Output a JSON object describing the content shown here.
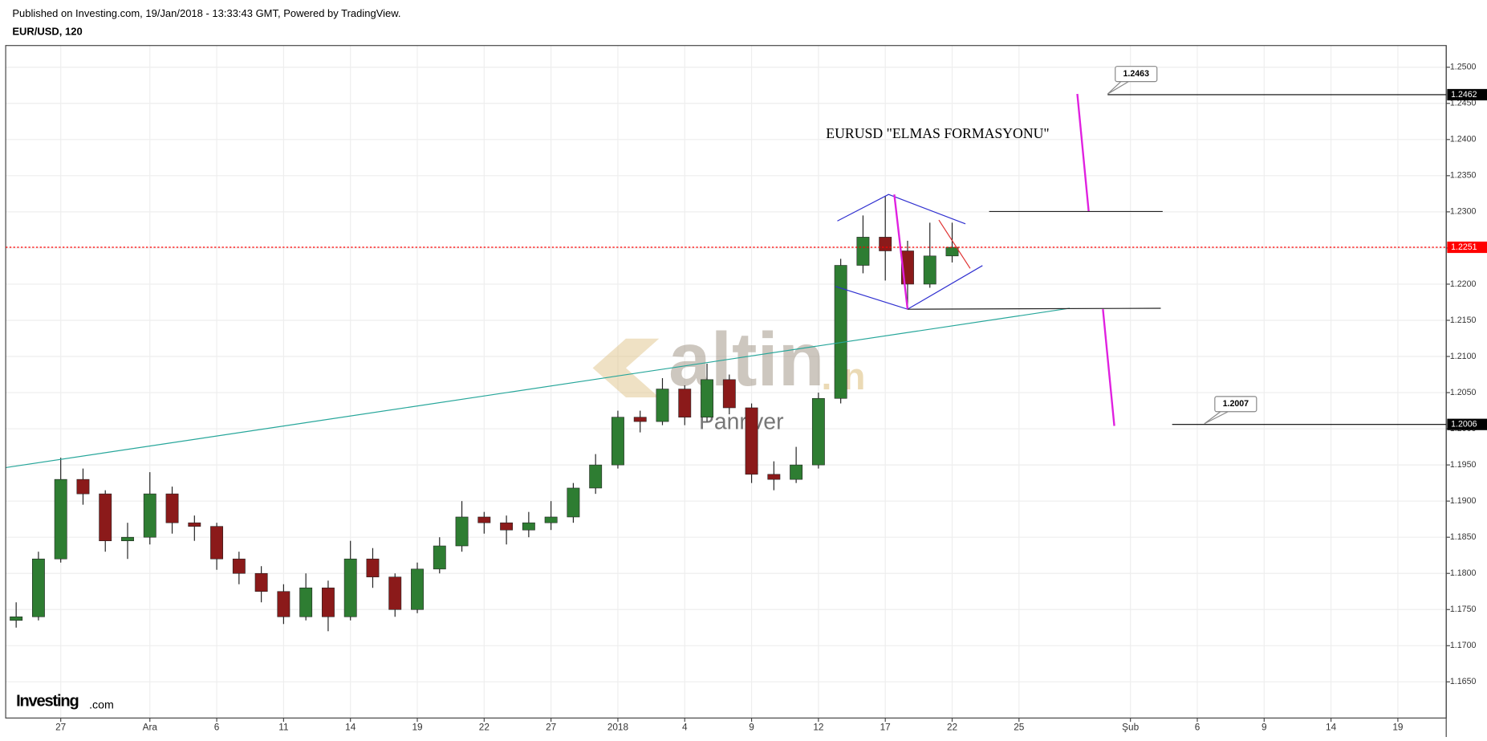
{
  "header": {
    "published": "Published on Investing.com, 19/Jan/2018 - 13:33:43 GMT, Powered by TradingView.",
    "symbol": "EUR/USD, 120"
  },
  "chart_data": {
    "type": "candlestick",
    "annotation": "EURUSD \"ELMAS FORMASYONU\"",
    "callouts": [
      1.2463,
      1.2007
    ],
    "watermark": {
      "brand": "altin",
      "suffix": ".in",
      "author": "Panriver"
    },
    "logo": {
      "name": "Investing",
      "suffix": ".com"
    },
    "up_color": "#2e7d32",
    "down_color": "#8b1a1a",
    "grid": true,
    "xlim": [
      -2.47,
      62.17
    ],
    "xticks": [
      {
        "value": 0,
        "label": "27"
      },
      {
        "value": 4,
        "label": "Ara"
      },
      {
        "value": 7,
        "label": "6"
      },
      {
        "value": 10,
        "label": "11"
      },
      {
        "value": 13,
        "label": "14"
      },
      {
        "value": 16,
        "label": "19"
      },
      {
        "value": 19,
        "label": "22"
      },
      {
        "value": 22,
        "label": "27"
      },
      {
        "value": 25,
        "label": "2018"
      },
      {
        "value": 28,
        "label": "4"
      },
      {
        "value": 31,
        "label": "9"
      },
      {
        "value": 34,
        "label": "12"
      },
      {
        "value": 37,
        "label": "17"
      },
      {
        "value": 40,
        "label": "22"
      },
      {
        "value": 43,
        "label": "25"
      },
      {
        "value": 48,
        "label": "Şub"
      },
      {
        "value": 51,
        "label": "6"
      },
      {
        "value": 54,
        "label": "9"
      },
      {
        "value": 57,
        "label": "14"
      },
      {
        "value": 60,
        "label": "19"
      }
    ],
    "ylim": [
      1.16,
      1.253
    ],
    "yticks": [
      {
        "value": 1.165,
        "label": "1.1650"
      },
      {
        "value": 1.17,
        "label": "1.1700"
      },
      {
        "value": 1.175,
        "label": "1.1750"
      },
      {
        "value": 1.18,
        "label": "1.1800"
      },
      {
        "value": 1.185,
        "label": "1.1850"
      },
      {
        "value": 1.19,
        "label": "1.1900"
      },
      {
        "value": 1.195,
        "label": "1.1950"
      },
      {
        "value": 1.2,
        "label": "1.2000"
      },
      {
        "value": 1.205,
        "label": "1.2050"
      },
      {
        "value": 1.21,
        "label": "1.2100"
      },
      {
        "value": 1.215,
        "label": "1.2150"
      },
      {
        "value": 1.22,
        "label": "1.2200"
      },
      {
        "value": 1.225,
        "label": "1.2250"
      },
      {
        "value": 1.23,
        "label": "1.2300"
      },
      {
        "value": 1.235,
        "label": "1.2350"
      },
      {
        "value": 1.24,
        "label": "1.2400"
      },
      {
        "value": 1.245,
        "label": "1.2450"
      },
      {
        "value": 1.25,
        "label": "1.2500"
      }
    ],
    "price_markers": [
      {
        "value": 1.2462,
        "color": "#000000"
      },
      {
        "value": 1.2251,
        "color": "#ff0000"
      },
      {
        "value": 1.2006,
        "color": "#000000"
      }
    ],
    "ohlc": {
      "x": [
        -2,
        -1,
        0,
        1,
        2,
        3,
        4,
        5,
        6,
        7,
        8,
        9,
        10,
        11,
        12,
        13,
        14,
        15,
        16,
        17,
        18,
        19,
        20,
        21,
        22,
        23,
        24,
        25,
        26,
        27,
        28,
        29,
        30,
        31,
        32,
        33,
        34,
        35,
        36,
        37,
        38,
        39,
        40
      ],
      "open": [
        1.1735,
        1.174,
        1.182,
        1.193,
        1.191,
        1.1845,
        1.185,
        1.191,
        1.187,
        1.1865,
        1.182,
        1.18,
        1.1775,
        1.174,
        1.178,
        1.174,
        1.182,
        1.1795,
        1.175,
        1.1806,
        1.1838,
        1.1878,
        1.187,
        1.186,
        1.187,
        1.1878,
        1.1918,
        1.195,
        1.2016,
        1.201,
        1.2055,
        1.2016,
        1.2068,
        1.2029,
        1.1937,
        1.193,
        1.195,
        1.2042,
        1.2226,
        1.2265,
        1.2246,
        1.22,
        1.2239
      ],
      "high": [
        1.176,
        1.183,
        1.196,
        1.1945,
        1.1915,
        1.187,
        1.194,
        1.192,
        1.188,
        1.187,
        1.183,
        1.181,
        1.1785,
        1.18,
        1.179,
        1.1845,
        1.1835,
        1.18,
        1.1815,
        1.185,
        1.19,
        1.1885,
        1.188,
        1.1885,
        1.19,
        1.1925,
        1.1965,
        1.2025,
        1.2025,
        1.207,
        1.206,
        1.209,
        1.2075,
        1.2035,
        1.1955,
        1.1975,
        1.205,
        1.2235,
        1.2295,
        1.2322,
        1.226,
        1.2285,
        1.2285
      ],
      "low": [
        1.1725,
        1.1735,
        1.1815,
        1.1895,
        1.183,
        1.182,
        1.184,
        1.1855,
        1.1845,
        1.1805,
        1.1785,
        1.176,
        1.173,
        1.1735,
        1.172,
        1.1735,
        1.178,
        1.174,
        1.1745,
        1.18,
        1.183,
        1.1855,
        1.184,
        1.185,
        1.186,
        1.187,
        1.191,
        1.1945,
        1.1995,
        1.2005,
        1.2005,
        1.201,
        1.202,
        1.1925,
        1.1915,
        1.1925,
        1.1945,
        1.2035,
        1.2215,
        1.2205,
        1.2165,
        1.2195,
        1.223
      ],
      "close": [
        1.174,
        1.182,
        1.193,
        1.191,
        1.1845,
        1.185,
        1.191,
        1.187,
        1.1865,
        1.182,
        1.18,
        1.1775,
        1.174,
        1.178,
        1.174,
        1.182,
        1.1795,
        1.175,
        1.1806,
        1.1838,
        1.1878,
        1.187,
        1.186,
        1.187,
        1.1878,
        1.1918,
        1.195,
        1.2016,
        1.201,
        1.2055,
        1.2016,
        1.2068,
        1.2029,
        1.1937,
        1.193,
        1.195,
        1.2042,
        1.2226,
        1.2265,
        1.2246,
        1.22,
        1.2239,
        1.2251
      ]
    }
  }
}
